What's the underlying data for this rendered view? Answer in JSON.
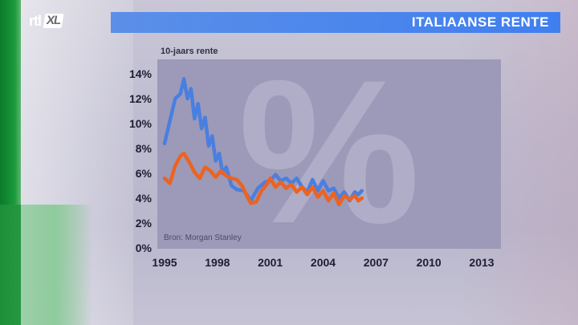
{
  "logo": {
    "text": "rtl",
    "badge": "XL"
  },
  "header": {
    "title": "ITALIAANSE RENTE"
  },
  "chart_data": {
    "type": "line",
    "subtitle": "10-jaars rente",
    "source": "Bron: Morgan Stanley",
    "xlim": [
      1995,
      2014.5
    ],
    "ylim": [
      0,
      14
    ],
    "x_ticks": [
      1995,
      1998,
      2001,
      2004,
      2007,
      2010,
      2013
    ],
    "y_ticks": [
      0,
      2,
      4,
      6,
      8,
      10,
      12,
      14
    ],
    "y_tick_labels": [
      "0%",
      "2%",
      "4%",
      "6%",
      "8%",
      "10%",
      "12%",
      "14%"
    ],
    "grid": false,
    "series": [
      {
        "color": "#4a7fe0",
        "points": [
          [
            1995.0,
            8.4
          ],
          [
            1995.3,
            10.2
          ],
          [
            1995.6,
            12.0
          ],
          [
            1995.9,
            12.4
          ],
          [
            1996.1,
            13.6
          ],
          [
            1996.3,
            12.0
          ],
          [
            1996.5,
            12.8
          ],
          [
            1996.7,
            10.4
          ],
          [
            1996.9,
            11.6
          ],
          [
            1997.1,
            9.6
          ],
          [
            1997.3,
            10.5
          ],
          [
            1997.5,
            8.2
          ],
          [
            1997.7,
            9.0
          ],
          [
            1997.9,
            7.0
          ],
          [
            1998.1,
            7.6
          ],
          [
            1998.3,
            6.0
          ],
          [
            1998.5,
            6.5
          ],
          [
            1998.8,
            5.0
          ],
          [
            1999.1,
            4.7
          ],
          [
            1999.5,
            4.6
          ],
          [
            1999.9,
            3.8
          ],
          [
            2000.3,
            4.8
          ],
          [
            2000.7,
            5.3
          ],
          [
            2001.0,
            5.4
          ],
          [
            2001.3,
            5.9
          ],
          [
            2001.6,
            5.4
          ],
          [
            2001.9,
            5.6
          ],
          [
            2002.2,
            5.2
          ],
          [
            2002.5,
            5.6
          ],
          [
            2002.8,
            4.9
          ],
          [
            2003.1,
            4.5
          ],
          [
            2003.4,
            5.5
          ],
          [
            2003.7,
            4.6
          ],
          [
            2004.0,
            5.4
          ],
          [
            2004.3,
            4.6
          ],
          [
            2004.6,
            4.8
          ],
          [
            2004.9,
            4.0
          ],
          [
            2005.2,
            4.5
          ],
          [
            2005.5,
            3.8
          ],
          [
            2005.8,
            4.5
          ],
          [
            2006.0,
            4.3
          ],
          [
            2006.2,
            4.6
          ]
        ]
      },
      {
        "color": "#ec6322",
        "points": [
          [
            1995.0,
            5.6
          ],
          [
            1995.3,
            5.2
          ],
          [
            1995.6,
            6.6
          ],
          [
            1995.9,
            7.4
          ],
          [
            1996.1,
            7.6
          ],
          [
            1996.4,
            6.9
          ],
          [
            1996.7,
            6.1
          ],
          [
            1997.0,
            5.6
          ],
          [
            1997.3,
            6.5
          ],
          [
            1997.6,
            6.2
          ],
          [
            1997.9,
            5.7
          ],
          [
            1998.2,
            6.2
          ],
          [
            1998.5,
            5.8
          ],
          [
            1998.8,
            5.6
          ],
          [
            1999.1,
            5.5
          ],
          [
            1999.4,
            5.0
          ],
          [
            1999.7,
            4.1
          ],
          [
            1999.9,
            3.6
          ],
          [
            2000.2,
            3.7
          ],
          [
            2000.5,
            4.6
          ],
          [
            2000.8,
            5.1
          ],
          [
            2001.0,
            5.6
          ],
          [
            2001.3,
            4.9
          ],
          [
            2001.6,
            5.3
          ],
          [
            2001.9,
            4.8
          ],
          [
            2002.2,
            5.1
          ],
          [
            2002.5,
            4.5
          ],
          [
            2002.8,
            4.9
          ],
          [
            2003.1,
            4.3
          ],
          [
            2003.4,
            4.9
          ],
          [
            2003.7,
            4.1
          ],
          [
            2004.0,
            4.6
          ],
          [
            2004.3,
            3.8
          ],
          [
            2004.6,
            4.4
          ],
          [
            2004.9,
            3.5
          ],
          [
            2005.2,
            4.2
          ],
          [
            2005.5,
            3.9
          ],
          [
            2005.8,
            4.2
          ],
          [
            2006.0,
            3.8
          ],
          [
            2006.2,
            4.0
          ]
        ]
      }
    ]
  }
}
